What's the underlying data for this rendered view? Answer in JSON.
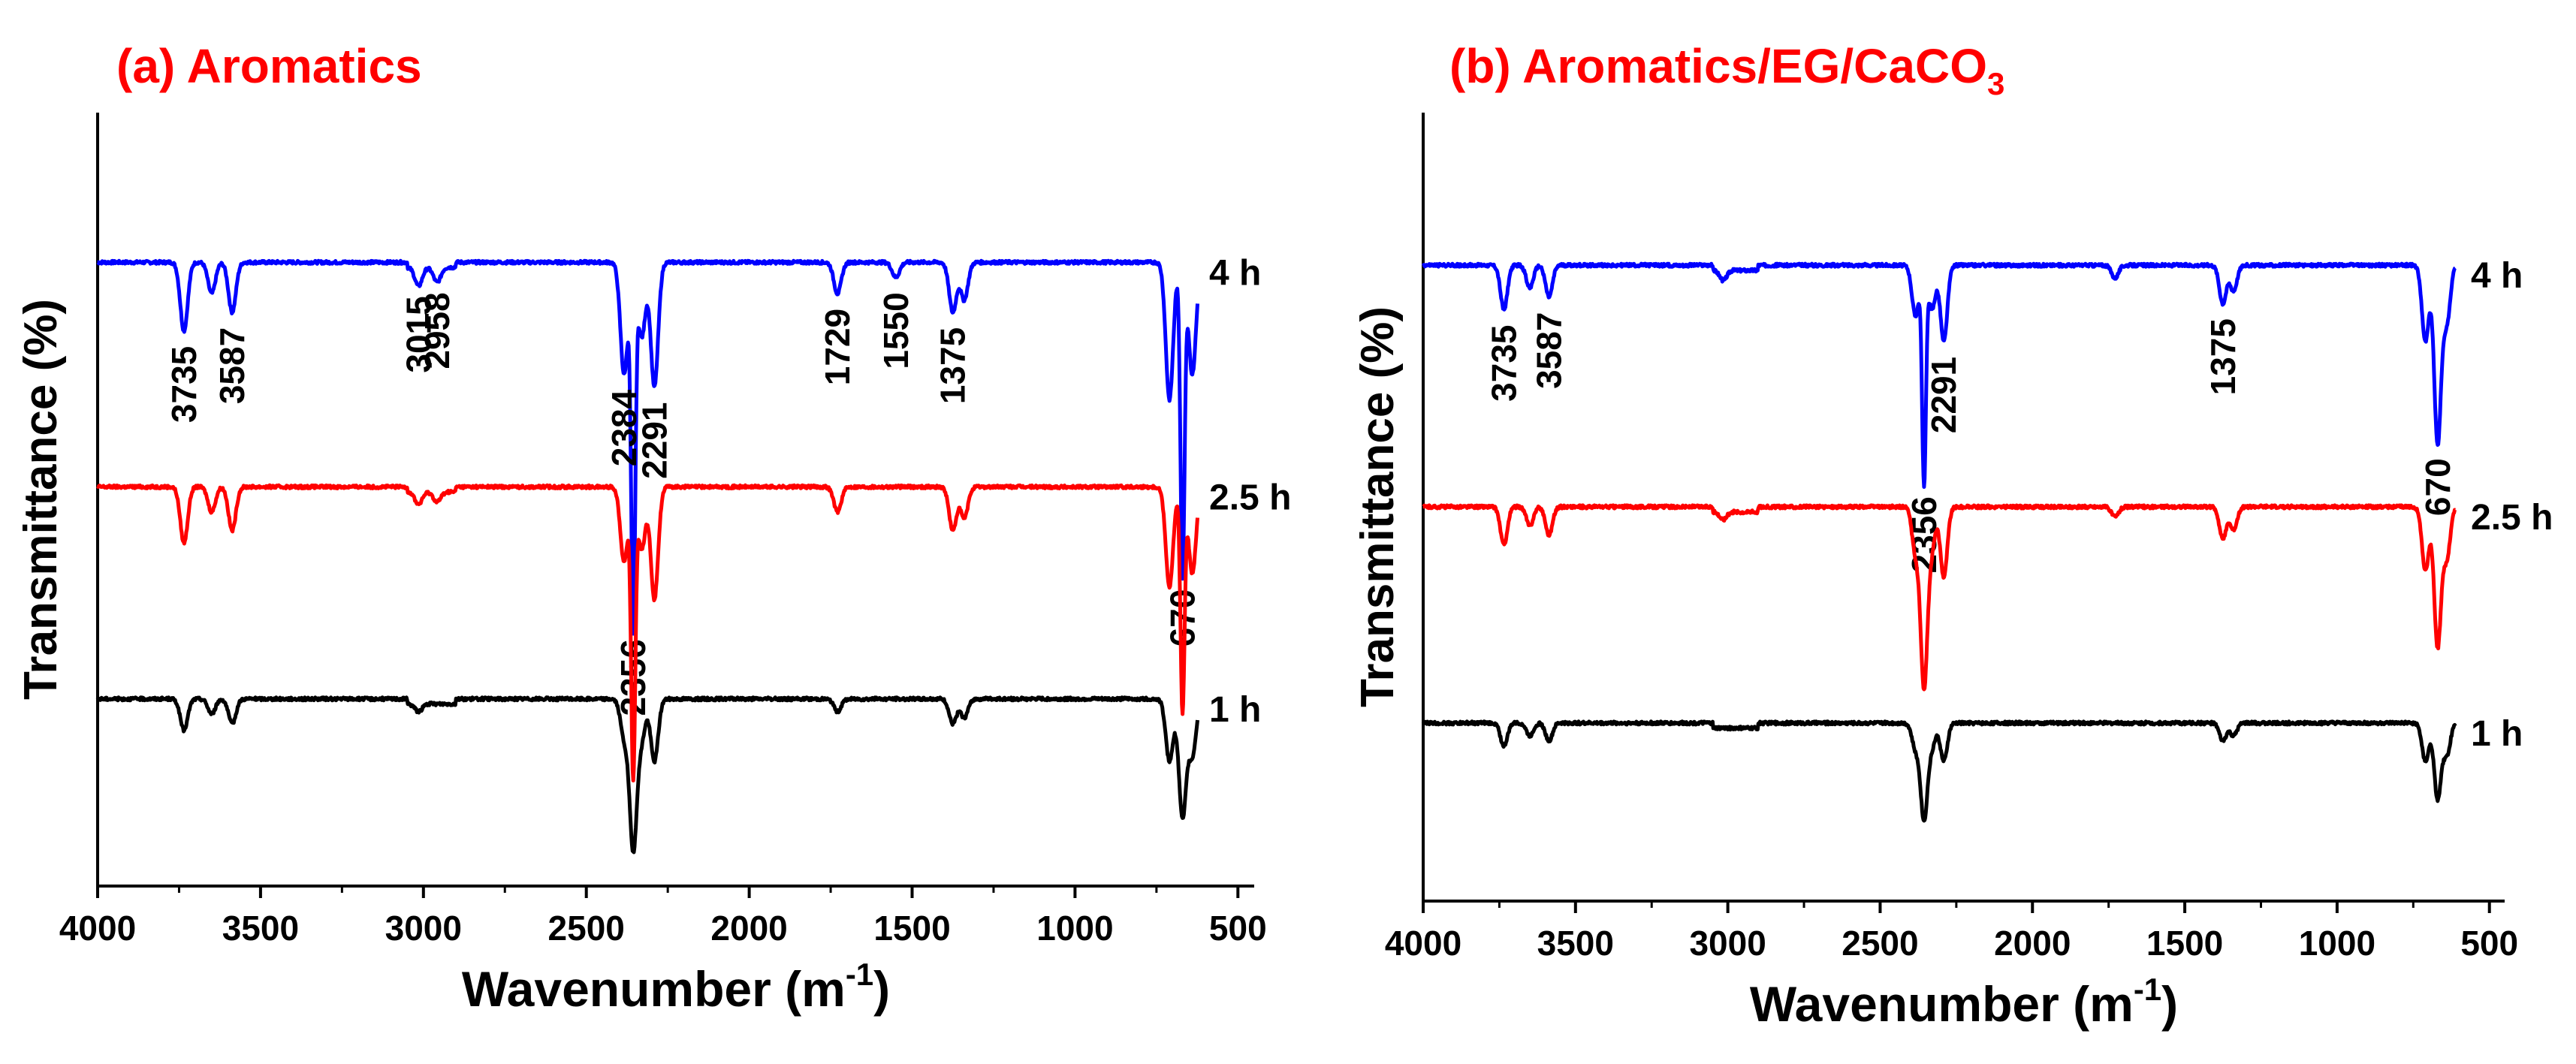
{
  "chart_data": [
    {
      "type": "line",
      "title": "(a) Aromatics",
      "xlabel": "Wavenumber (m",
      "xlabel_sup": "-1",
      "xlabel_close": ")",
      "ylabel": "Transmittance (%)",
      "xlim": [
        4000,
        450
      ],
      "x_reversed": true,
      "xticks": [
        4000,
        3500,
        3000,
        2500,
        2000,
        1500,
        1000,
        500
      ],
      "ytick_labels": false,
      "grid": false,
      "legend": "none",
      "series": [
        {
          "name": "4 h",
          "color": "#0000ff",
          "baseline": 3.0,
          "peaks": [
            [
              3735,
              0.55
            ],
            [
              3587,
              0.4
            ],
            [
              3650,
              0.25
            ],
            [
              3015,
              0.15
            ],
            [
              2958,
              0.12
            ],
            [
              2384,
              0.9
            ],
            [
              2356,
              2.9
            ],
            [
              2291,
              1.0
            ],
            [
              2330,
              0.6
            ],
            [
              1729,
              0.25
            ],
            [
              1550,
              0.12
            ],
            [
              1375,
              0.4
            ],
            [
              1340,
              0.3
            ],
            [
              670,
              2.5
            ],
            [
              710,
              1.1
            ],
            [
              640,
              0.9
            ]
          ],
          "peak_labels": [
            "3735",
            "3587",
            "3015",
            "2958",
            "2384",
            "2356",
            "2291",
            "1729",
            "1550",
            "1375",
            "670"
          ]
        },
        {
          "name": "2.5 h",
          "color": "#ff0000",
          "baseline": 1.2,
          "peaks": [
            [
              3735,
              0.45
            ],
            [
              3587,
              0.35
            ],
            [
              3650,
              0.2
            ],
            [
              3015,
              0.1
            ],
            [
              2958,
              0.08
            ],
            [
              2384,
              0.6
            ],
            [
              2356,
              2.3
            ],
            [
              2291,
              0.9
            ],
            [
              2330,
              0.5
            ],
            [
              1729,
              0.2
            ],
            [
              1375,
              0.35
            ],
            [
              1340,
              0.25
            ],
            [
              670,
              1.8
            ],
            [
              710,
              0.8
            ],
            [
              640,
              0.7
            ]
          ],
          "peak_labels": []
        },
        {
          "name": "1 h",
          "color": "#000000",
          "baseline": -0.5,
          "peaks": [
            [
              3735,
              0.25
            ],
            [
              3587,
              0.2
            ],
            [
              3650,
              0.12
            ],
            [
              3015,
              0.06
            ],
            [
              2384,
              0.3
            ],
            [
              2356,
              1.2
            ],
            [
              2291,
              0.5
            ],
            [
              2330,
              0.3
            ],
            [
              1729,
              0.1
            ],
            [
              1375,
              0.2
            ],
            [
              1340,
              0.15
            ],
            [
              670,
              0.95
            ],
            [
              710,
              0.5
            ],
            [
              640,
              0.45
            ]
          ],
          "peak_labels": []
        }
      ]
    },
    {
      "type": "line",
      "title": "(b) Aromatics/EG/CaCO",
      "title_sub": "3",
      "xlabel": "Wavenumber (m",
      "xlabel_sup": "-1",
      "xlabel_close": ")",
      "ylabel": "Transmittance (%)",
      "xlim": [
        4000,
        450
      ],
      "x_reversed": true,
      "xticks": [
        4000,
        3500,
        3000,
        2500,
        2000,
        1500,
        1000,
        500
      ],
      "ytick_labels": false,
      "grid": false,
      "legend": "none",
      "series": [
        {
          "name": "4 h",
          "color": "#0000ff",
          "baseline": 3.0,
          "peaks": [
            [
              3735,
              0.35
            ],
            [
              3587,
              0.25
            ],
            [
              3650,
              0.18
            ],
            [
              3015,
              0.08
            ],
            [
              2384,
              0.4
            ],
            [
              2356,
              1.7
            ],
            [
              2291,
              0.6
            ],
            [
              2330,
              0.35
            ],
            [
              1729,
              0.1
            ],
            [
              1375,
              0.3
            ],
            [
              1340,
              0.2
            ],
            [
              670,
              1.4
            ],
            [
              710,
              0.6
            ],
            [
              640,
              0.45
            ]
          ],
          "peak_labels": [
            "3735",
            "3587",
            "2356",
            "2291",
            "1375",
            "670"
          ]
        },
        {
          "name": "2.5 h",
          "color": "#ff0000",
          "baseline": 1.1,
          "peaks": [
            [
              3735,
              0.3
            ],
            [
              3587,
              0.22
            ],
            [
              3650,
              0.15
            ],
            [
              3015,
              0.06
            ],
            [
              2384,
              0.35
            ],
            [
              2356,
              1.4
            ],
            [
              2291,
              0.55
            ],
            [
              2330,
              0.3
            ],
            [
              1729,
              0.08
            ],
            [
              1375,
              0.25
            ],
            [
              1340,
              0.18
            ],
            [
              670,
              1.1
            ],
            [
              710,
              0.5
            ],
            [
              640,
              0.4
            ]
          ],
          "peak_labels": []
        },
        {
          "name": "1 h",
          "color": "#000000",
          "baseline": -0.6,
          "peaks": [
            [
              3735,
              0.18
            ],
            [
              3587,
              0.14
            ],
            [
              3650,
              0.1
            ],
            [
              2384,
              0.2
            ],
            [
              2356,
              0.75
            ],
            [
              2291,
              0.3
            ],
            [
              2330,
              0.18
            ],
            [
              1375,
              0.14
            ],
            [
              1340,
              0.1
            ],
            [
              670,
              0.6
            ],
            [
              710,
              0.3
            ],
            [
              640,
              0.25
            ]
          ],
          "peak_labels": []
        }
      ]
    }
  ]
}
